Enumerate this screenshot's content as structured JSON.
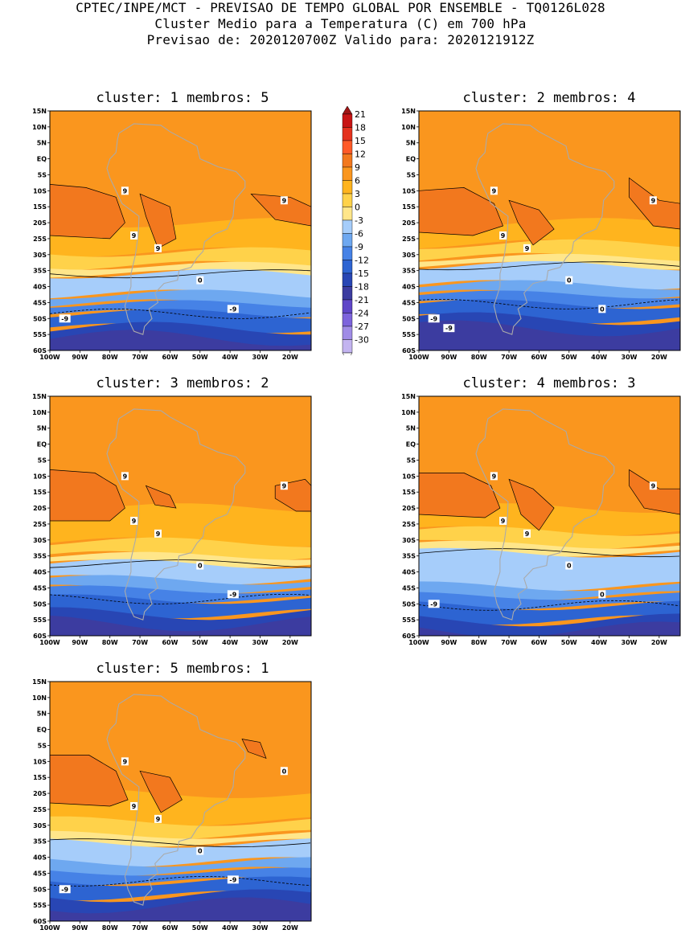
{
  "header": {
    "line1": "CPTEC/INPE/MCT - PREVISAO DE TEMPO GLOBAL POR ENSEMBLE - TQ0126L028",
    "line2": "Cluster Medio para a Temperatura (C) em 700 hPa",
    "line3": "Previsao de: 2020120700Z   Valido para: 2020121912Z"
  },
  "axes": {
    "lat_labels": [
      "15N",
      "10N",
      "5N",
      "EQ",
      "5S",
      "10S",
      "15S",
      "20S",
      "25S",
      "30S",
      "35S",
      "40S",
      "45S",
      "50S",
      "55S",
      "60S"
    ],
    "lon_labels": [
      "100W",
      "90W",
      "80W",
      "70W",
      "60W",
      "50W",
      "40W",
      "30W",
      "20W"
    ],
    "lat_range": [
      -60,
      15
    ],
    "lon_range": [
      -100,
      -13
    ]
  },
  "colorbar": {
    "labels": [
      "21",
      "18",
      "15",
      "12",
      "9",
      "6",
      "3",
      "0",
      "-3",
      "-6",
      "-9",
      "-12",
      "-15",
      "-18",
      "-21",
      "-24",
      "-27",
      "-30"
    ],
    "colors": [
      "#c81414",
      "#e4321e",
      "#ff5a28",
      "#f2781e",
      "#fa961e",
      "#ffb41e",
      "#ffd24a",
      "#ffe68a",
      "#a6cdfa",
      "#6ea8f0",
      "#4682e6",
      "#2d64d2",
      "#2846b4",
      "#3c3ca0",
      "#5f46c8",
      "#7d64dc",
      "#a08ce6",
      "#c3b4f0"
    ]
  },
  "clusters": [
    {
      "id": 1,
      "title": "cluster: 1  membros: 5",
      "contour_labels": [
        "9",
        "9",
        "9",
        "9",
        "0",
        "-9",
        "-9"
      ]
    },
    {
      "id": 2,
      "title": "cluster: 2  membros: 4",
      "contour_labels": [
        "9",
        "9",
        "9",
        "9",
        "0",
        "0",
        "-9",
        "-9"
      ]
    },
    {
      "id": 3,
      "title": "cluster: 3  membros: 2",
      "contour_labels": [
        "9",
        "9",
        "9",
        "9",
        "0",
        "-9"
      ]
    },
    {
      "id": 4,
      "title": "cluster: 4  membros: 3",
      "contour_labels": [
        "9",
        "9",
        "9",
        "9",
        "0",
        "0",
        "-9"
      ]
    },
    {
      "id": 5,
      "title": "cluster: 5  membros: 1",
      "contour_labels": [
        "9",
        "9",
        "9",
        "0",
        "0",
        "-9",
        "-9"
      ]
    }
  ]
}
